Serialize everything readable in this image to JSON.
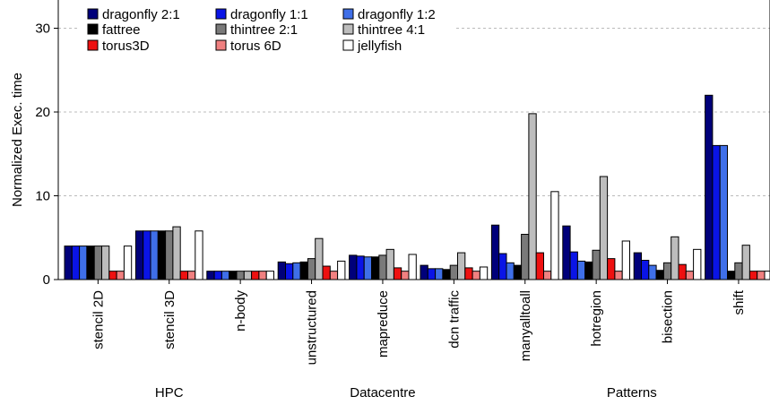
{
  "chart_data": {
    "type": "bar",
    "ylabel": "Normalized Exec. time",
    "xlabel": "",
    "ylim": [
      0,
      31
    ],
    "yticks": [
      0,
      10,
      20,
      30
    ],
    "grid": "horizontal dashed",
    "legend_position": "top-left",
    "categories": [
      "stencil 2D",
      "stencil 3D",
      "n-body",
      "unstructured",
      "mapreduce",
      "dcn traffic",
      "manyalltoall",
      "hotregion",
      "bisection",
      "shift"
    ],
    "groups": [
      {
        "label": "HPC",
        "categories": [
          "stencil 2D",
          "stencil 3D",
          "n-body"
        ]
      },
      {
        "label": "Datacentre",
        "categories": [
          "unstructured",
          "mapreduce",
          "dcn traffic"
        ]
      },
      {
        "label": "Patterns",
        "categories": [
          "manyalltoall",
          "hotregion",
          "bisection",
          "shift"
        ]
      }
    ],
    "series": [
      {
        "name": "dragonfly 2:1",
        "color": "#00007a",
        "values": [
          4.0,
          5.8,
          1.0,
          2.1,
          2.9,
          1.7,
          6.5,
          6.4,
          3.2,
          22.0
        ]
      },
      {
        "name": "dragonfly 1:1",
        "color": "#0a14e6",
        "values": [
          4.0,
          5.8,
          1.0,
          1.9,
          2.8,
          1.3,
          3.1,
          3.3,
          2.3,
          16.0
        ]
      },
      {
        "name": "dragonfly 1:2",
        "color": "#3f6fe8",
        "values": [
          4.0,
          5.8,
          1.0,
          2.0,
          2.7,
          1.3,
          2.0,
          2.2,
          1.7,
          16.0
        ]
      },
      {
        "name": "fattree",
        "color": "#000000",
        "values": [
          4.0,
          5.8,
          1.0,
          2.1,
          2.7,
          1.2,
          1.7,
          2.1,
          1.1,
          1.0
        ]
      },
      {
        "name": "thintree 2:1",
        "color": "#7a7a7a",
        "values": [
          4.0,
          5.8,
          1.0,
          2.5,
          2.9,
          1.7,
          5.4,
          3.5,
          2.0,
          2.0
        ]
      },
      {
        "name": "thintree 4:1",
        "color": "#bdbdbd",
        "values": [
          4.0,
          6.3,
          1.0,
          4.9,
          3.6,
          3.2,
          19.8,
          12.3,
          5.1,
          4.1
        ]
      },
      {
        "name": "torus3D",
        "color": "#ee1111",
        "values": [
          1.0,
          1.0,
          1.0,
          1.6,
          1.4,
          1.4,
          3.2,
          2.5,
          1.8,
          1.0
        ]
      },
      {
        "name": "torus 6D",
        "color": "#f08080",
        "values": [
          1.0,
          1.0,
          1.0,
          1.0,
          1.0,
          1.0,
          1.0,
          1.0,
          1.0,
          1.0
        ]
      },
      {
        "name": "jellyfish",
        "color": "#ffffff",
        "values": [
          4.0,
          5.8,
          1.0,
          2.2,
          3.0,
          1.5,
          10.5,
          4.6,
          3.6,
          1.0
        ]
      }
    ]
  }
}
